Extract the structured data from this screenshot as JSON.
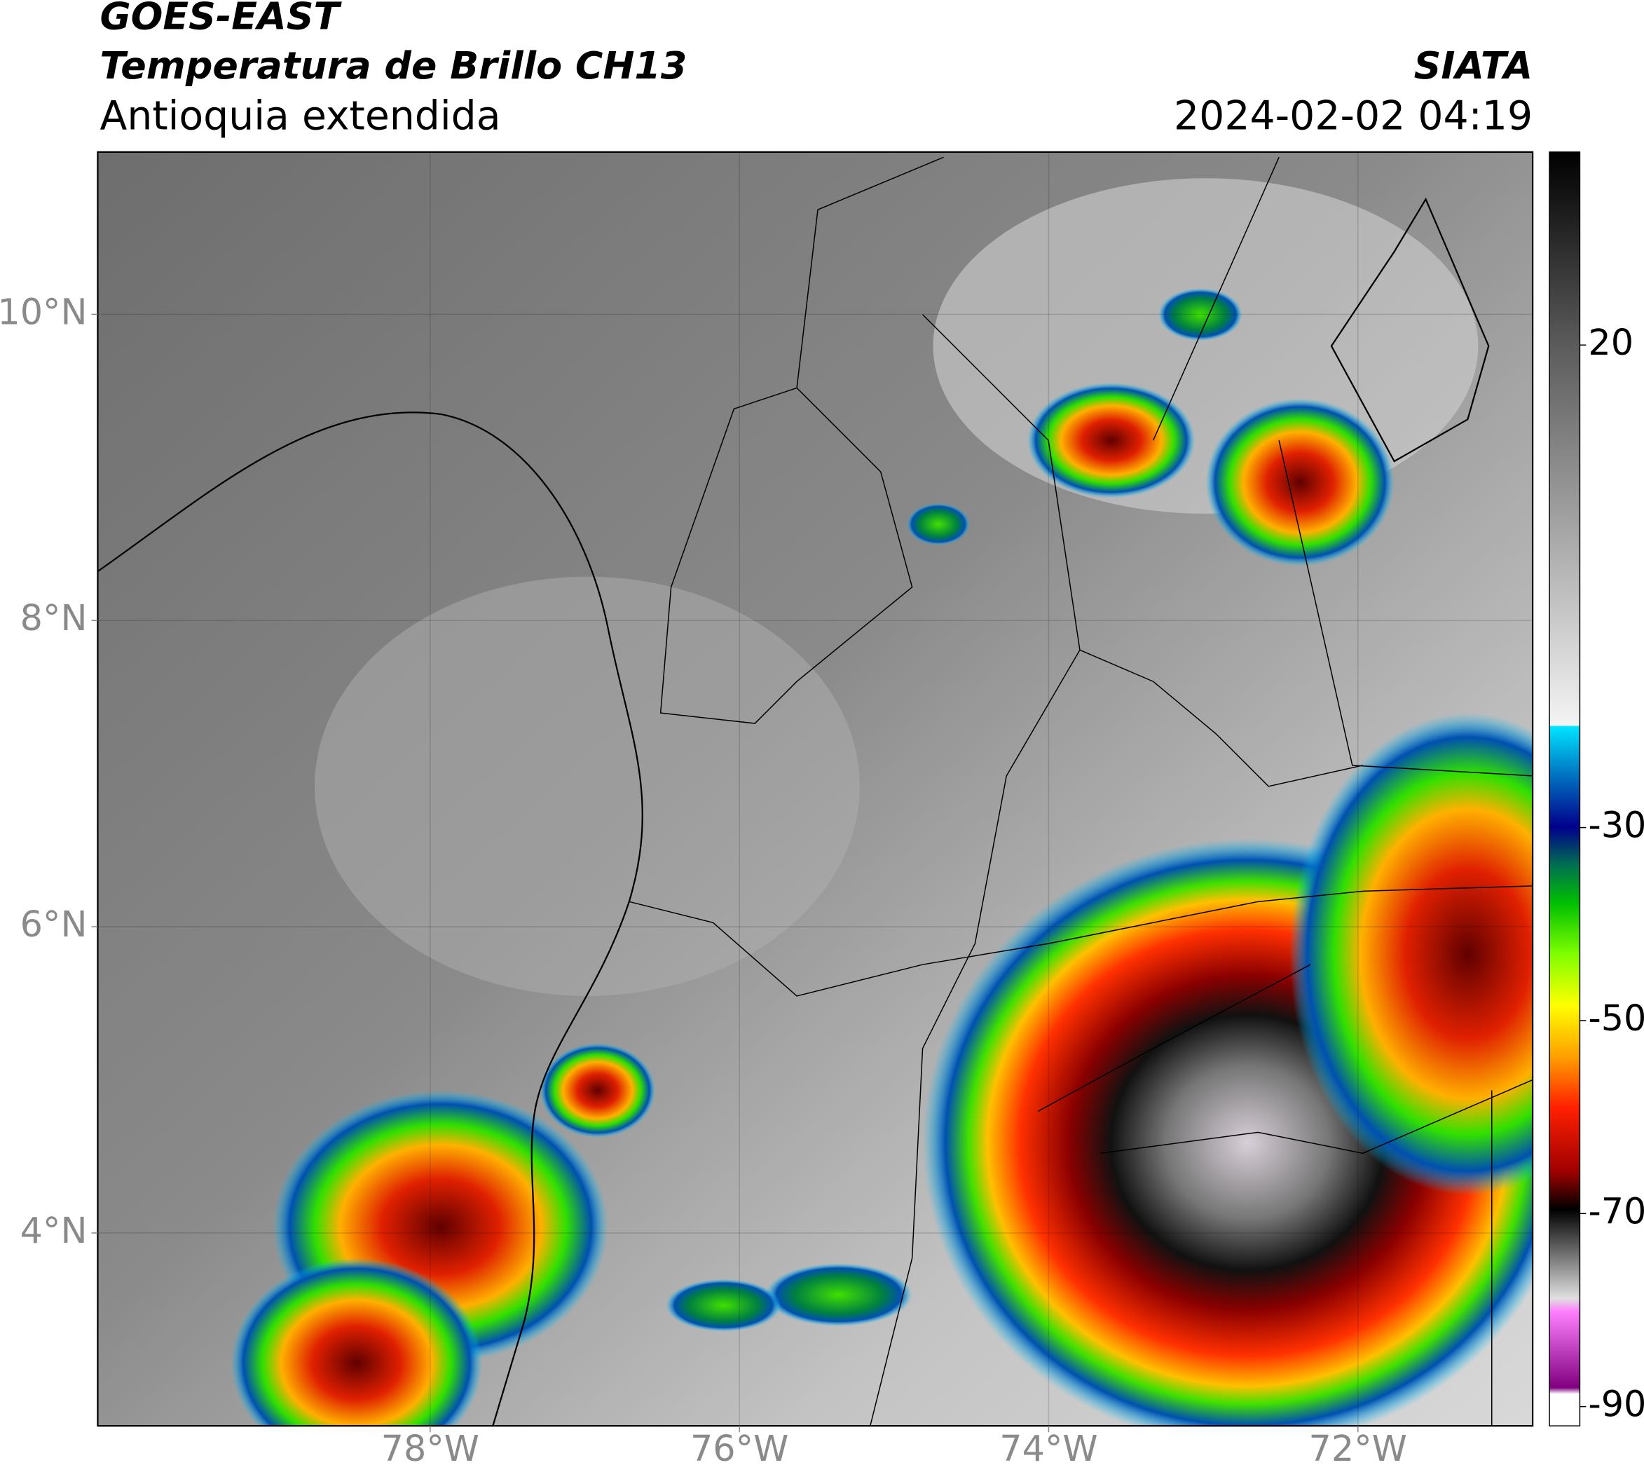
{
  "header": {
    "satellite": "GOES-EAST",
    "product": "Temperatura de Brillo CH13",
    "region": "Antioquia extendida",
    "agency": "SIATA",
    "datetime": "2024-02-02 04:19"
  },
  "map": {
    "lonlim": [
      -80.15,
      -70.87
    ],
    "latlim": [
      2.74,
      11.06
    ],
    "lonticks": [
      {
        "value": -78,
        "label": "78°W"
      },
      {
        "value": -76,
        "label": "76°W"
      },
      {
        "value": -74,
        "label": "74°W"
      },
      {
        "value": -72,
        "label": "72°W"
      }
    ],
    "latticks": [
      {
        "value": 10,
        "label": "10°N"
      },
      {
        "value": 8,
        "label": "8°N"
      },
      {
        "value": 6,
        "label": "6°N"
      },
      {
        "value": 4,
        "label": "4°N"
      }
    ]
  },
  "colorbar": {
    "lim": [
      -92,
      40
    ],
    "ticks": [
      20,
      -30,
      -50,
      -70,
      -90
    ]
  }
}
